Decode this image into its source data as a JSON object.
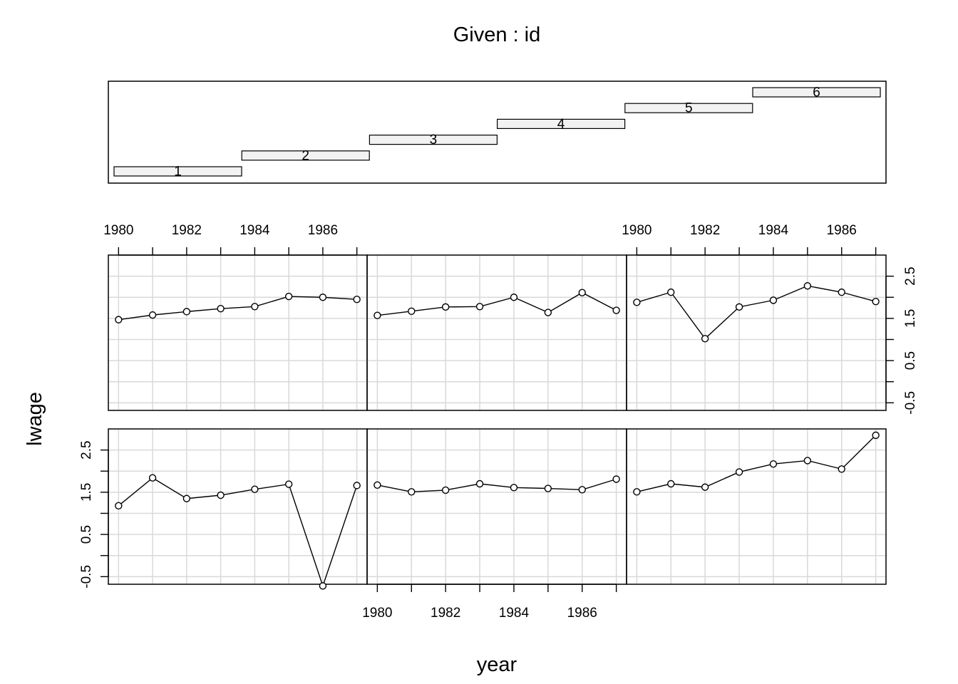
{
  "chart_data": {
    "type": "line",
    "title": "Given : id",
    "xlabel": "year",
    "ylabel": "lwage",
    "given": {
      "labels": [
        "1",
        "2",
        "3",
        "4",
        "5",
        "6"
      ]
    },
    "x": [
      1980,
      1981,
      1982,
      1983,
      1984,
      1985,
      1986,
      1987
    ],
    "x_ticks": [
      1980,
      1981,
      1982,
      1983,
      1984,
      1985,
      1986,
      1987
    ],
    "x_tick_labels": [
      "1980",
      "1982",
      "1984",
      "1986"
    ],
    "xlim": [
      1979.7,
      1987.3
    ],
    "y_ticks": [
      -0.5,
      0,
      0.5,
      1,
      1.5,
      2,
      2.5
    ],
    "y_tick_labels": [
      "-0.5",
      "0.5",
      "1.5",
      "2.5"
    ],
    "ylim": [
      -0.68,
      3.0
    ],
    "grid": true,
    "series": [
      {
        "id": "1",
        "values": [
          1.47,
          1.58,
          1.66,
          1.73,
          1.78,
          2.02,
          2.0,
          1.95
        ]
      },
      {
        "id": "2",
        "values": [
          1.57,
          1.67,
          1.77,
          1.78,
          2.0,
          1.64,
          2.11,
          1.69
        ]
      },
      {
        "id": "3",
        "values": [
          1.88,
          2.12,
          1.02,
          1.77,
          1.93,
          2.27,
          2.12,
          1.9
        ]
      },
      {
        "id": "4",
        "values": [
          1.18,
          1.84,
          1.35,
          1.43,
          1.57,
          1.69,
          -0.72,
          1.66
        ]
      },
      {
        "id": "5",
        "values": [
          1.67,
          1.51,
          1.55,
          1.7,
          1.61,
          1.59,
          1.56,
          1.81
        ]
      },
      {
        "id": "6",
        "values": [
          1.51,
          1.7,
          1.62,
          1.98,
          2.17,
          2.25,
          2.05,
          2.85
        ]
      }
    ]
  }
}
